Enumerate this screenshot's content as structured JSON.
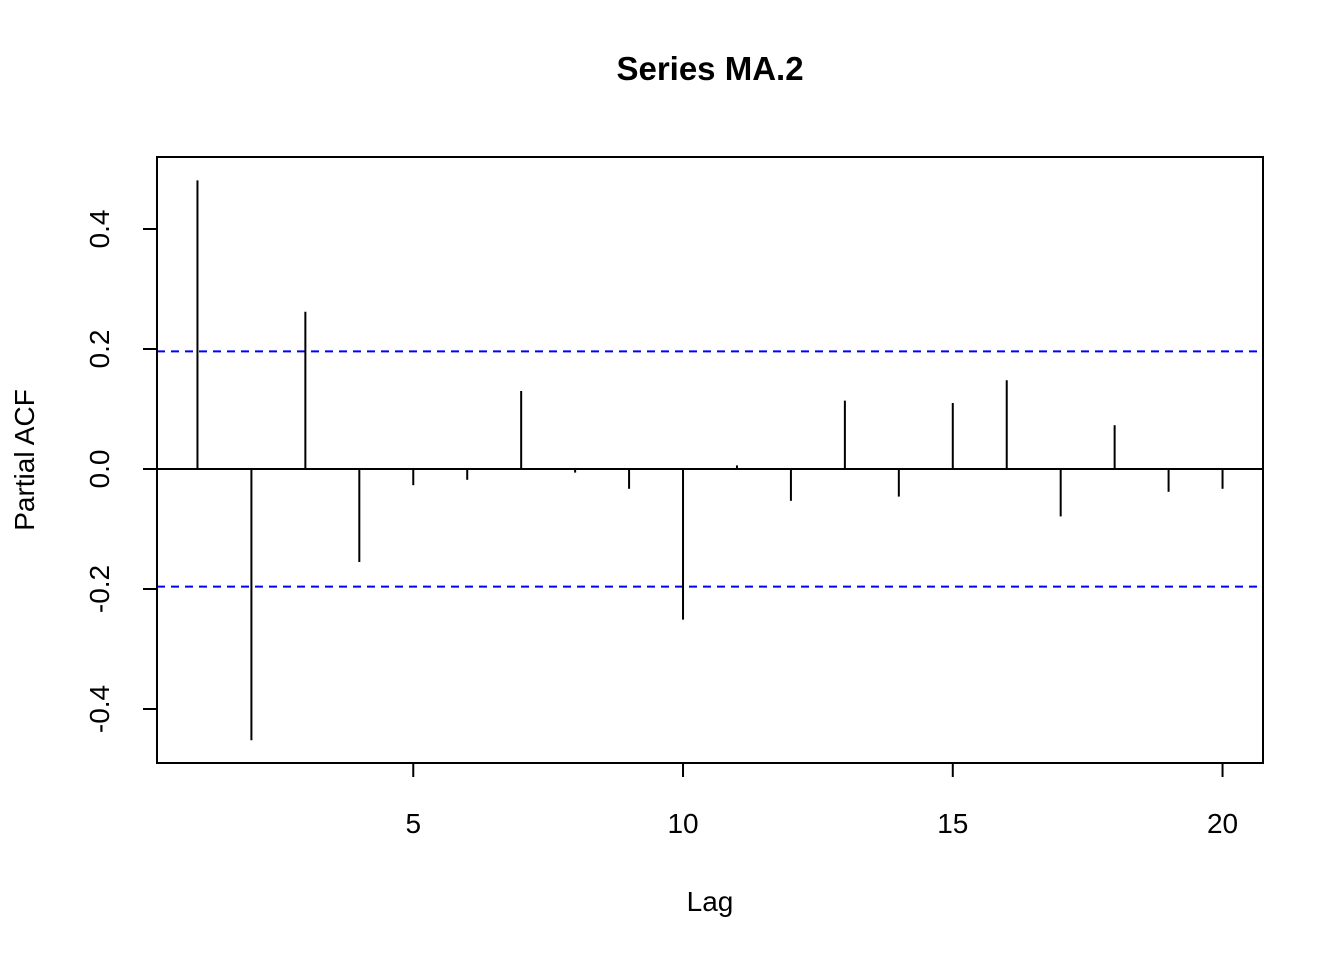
{
  "chart_data": {
    "type": "bar",
    "title": "Series  MA.2",
    "xlabel": "Lag",
    "ylabel": "Partial ACF",
    "xlim": [
      0.25,
      20.75
    ],
    "ylim": [
      -0.49,
      0.52
    ],
    "xticks": [
      5,
      10,
      15,
      20
    ],
    "xtick_labels": [
      "5",
      "10",
      "15",
      "20"
    ],
    "yticks": [
      -0.4,
      -0.2,
      0.0,
      0.2,
      0.4
    ],
    "ytick_labels": [
      "-0.4",
      "-0.2",
      "0.0",
      "0.2",
      "0.4"
    ],
    "x": [
      1,
      2,
      3,
      4,
      5,
      6,
      7,
      8,
      9,
      10,
      11,
      12,
      13,
      14,
      15,
      16,
      17,
      18,
      19,
      20
    ],
    "values": [
      0.481,
      -0.452,
      0.262,
      -0.155,
      -0.027,
      -0.018,
      0.13,
      -0.006,
      -0.033,
      -0.251,
      0.006,
      -0.053,
      0.114,
      -0.046,
      0.11,
      0.148,
      -0.079,
      0.073,
      -0.038,
      -0.033
    ],
    "confidence_bounds": [
      0.196,
      -0.196
    ],
    "confidence_color": "#0000ff",
    "bar_color": "#000000",
    "grid": false
  }
}
